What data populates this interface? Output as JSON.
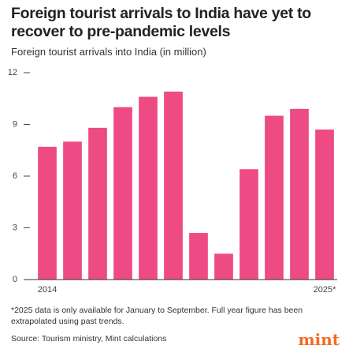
{
  "chart_data": {
    "type": "bar",
    "title": "Foreign tourist arrivals to India have yet to recover to pre-pandemic levels",
    "subtitle": "Foreign tourist arrivals into India (in million)",
    "categories": [
      "2014",
      null,
      null,
      null,
      null,
      null,
      null,
      null,
      null,
      null,
      null,
      "2025*"
    ],
    "values": [
      7.7,
      8.0,
      8.8,
      10.0,
      10.6,
      10.9,
      2.7,
      1.5,
      6.4,
      9.5,
      9.9,
      8.7
    ],
    "color": "#ee4a84",
    "ylim": [
      0,
      12
    ],
    "yticks": [
      0,
      3,
      6,
      9,
      12
    ]
  },
  "footnote": "*2025 data is only available for January to September. Full year figure has been extrapolated using past trends.",
  "source": "Source: Tourism ministry, Mint calculations",
  "logo": "mint"
}
